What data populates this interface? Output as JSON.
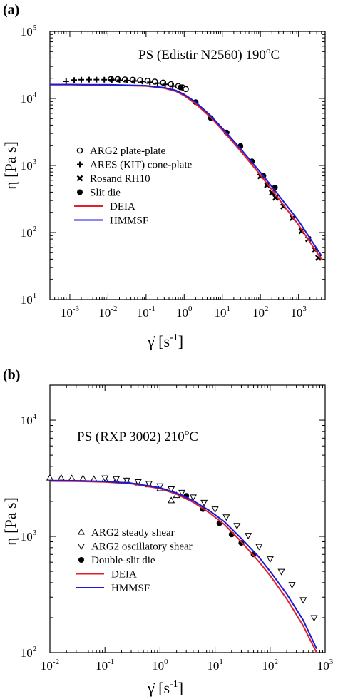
{
  "chart_data": [
    {
      "type": "line",
      "panel_label": "(a)",
      "annotation": {
        "text": "PS (Edistir N2560) 190",
        "sup": "o",
        "suffix": "C"
      },
      "xlabel": {
        "text": "γ̇ [s",
        "sup": "-1",
        "suffix": "]"
      },
      "ylabel": "η [Pa s]",
      "xscale": "log",
      "yscale": "log",
      "xlim": [
        0.0003,
        5000
      ],
      "ylim": [
        10,
        100000
      ],
      "x_ticks": [
        {
          "value": 0.001,
          "base": "10",
          "exp": "-3"
        },
        {
          "value": 0.01,
          "base": "10",
          "exp": "-2"
        },
        {
          "value": 0.1,
          "base": "10",
          "exp": "-1"
        },
        {
          "value": 1,
          "base": "10",
          "exp": "0"
        },
        {
          "value": 10,
          "base": "10",
          "exp": "1"
        },
        {
          "value": 100,
          "base": "10",
          "exp": "2"
        },
        {
          "value": 1000,
          "base": "10",
          "exp": "3"
        }
      ],
      "y_ticks": [
        {
          "value": 10,
          "base": "10",
          "exp": "1"
        },
        {
          "value": 100,
          "base": "10",
          "exp": "2"
        },
        {
          "value": 1000,
          "base": "10",
          "exp": "3"
        },
        {
          "value": 10000,
          "base": "10",
          "exp": "4"
        },
        {
          "value": 100000,
          "base": "10",
          "exp": "5"
        }
      ],
      "legend_position": "left",
      "series": [
        {
          "name": "ARG2 plate-plate",
          "kind": "markers",
          "marker": "open-circle",
          "x": [
            0.012,
            0.018,
            0.028,
            0.045,
            0.07,
            0.11,
            0.17,
            0.28,
            0.45,
            0.7,
            0.9,
            1.1
          ],
          "y": [
            19500,
            19400,
            19200,
            19000,
            18700,
            18300,
            17800,
            17200,
            16300,
            15300,
            14600,
            13800
          ]
        },
        {
          "name": "ARES (KIT) cone-plate",
          "kind": "markers",
          "marker": "plus",
          "x": [
            0.0008,
            0.0013,
            0.002,
            0.0032,
            0.005,
            0.008,
            0.0126,
            0.02,
            0.0316,
            0.05,
            0.08,
            0.126,
            0.2,
            0.316,
            0.5
          ],
          "y": [
            18000,
            18800,
            19000,
            19100,
            19100,
            19000,
            18900,
            18700,
            18500,
            18200,
            17900,
            17400,
            16900,
            16200,
            15300
          ]
        },
        {
          "name": "Rosand RH10",
          "kind": "markers",
          "marker": "x-cross",
          "x": [
            100,
            150,
            200,
            250,
            400,
            700,
            1200,
            1800,
            2700,
            3300
          ],
          "y": [
            690,
            510,
            390,
            330,
            245,
            165,
            105,
            80,
            55,
            42
          ]
        },
        {
          "name": "Slit die",
          "kind": "markers",
          "marker": "filled-circle",
          "x": [
            0.8,
            2,
            5,
            13,
            30,
            60,
            120,
            240
          ],
          "y": [
            14600,
            8800,
            5100,
            3100,
            1950,
            1150,
            700,
            470
          ]
        },
        {
          "name": "DEIA",
          "kind": "line",
          "color": "#e0202a",
          "x": [
            0.0003,
            0.001,
            0.01,
            0.1,
            0.3,
            0.6,
            1,
            2,
            5,
            10,
            30,
            100,
            300,
            1000,
            4000
          ],
          "y": [
            16000,
            16000,
            15800,
            15300,
            14200,
            12800,
            11000,
            8300,
            5200,
            3400,
            1650,
            720,
            320,
            130,
            40
          ]
        },
        {
          "name": "HMMSF",
          "kind": "line",
          "color": "#1a1ad8",
          "x": [
            0.0003,
            0.001,
            0.01,
            0.1,
            0.3,
            0.6,
            1,
            2,
            5,
            10,
            30,
            100,
            300,
            1000,
            4000
          ],
          "y": [
            16100,
            16100,
            16000,
            15500,
            14500,
            13200,
            11500,
            8800,
            5500,
            3600,
            1780,
            790,
            360,
            150,
            45
          ]
        }
      ]
    },
    {
      "type": "line",
      "panel_label": "(b)",
      "annotation": {
        "text": "PS (RXP 3002) 210",
        "sup": "o",
        "suffix": "C"
      },
      "xlabel": {
        "text": "γ̇ [s",
        "sup": "-1",
        "suffix": "]"
      },
      "ylabel": "η [Pa s]",
      "xscale": "log",
      "yscale": "log",
      "xlim": [
        0.01,
        1000
      ],
      "ylim": [
        100,
        20000
      ],
      "x_ticks": [
        {
          "value": 0.01,
          "base": "10",
          "exp": "-2"
        },
        {
          "value": 0.1,
          "base": "10",
          "exp": "-1"
        },
        {
          "value": 1,
          "base": "10",
          "exp": "0"
        },
        {
          "value": 10,
          "base": "10",
          "exp": "1"
        },
        {
          "value": 100,
          "base": "10",
          "exp": "2"
        },
        {
          "value": 1000,
          "base": "10",
          "exp": "3"
        }
      ],
      "y_ticks": [
        {
          "value": 100,
          "base": "10",
          "exp": "2"
        },
        {
          "value": 1000,
          "base": "10",
          "exp": "3"
        },
        {
          "value": 10000,
          "base": "10",
          "exp": "4"
        }
      ],
      "legend_position": "bottom-left",
      "series": [
        {
          "name": "ARG2 steady shear",
          "kind": "markers",
          "marker": "triangle-up",
          "x": [
            0.01,
            0.016,
            0.025,
            0.04,
            0.063,
            0.1,
            0.16,
            0.25,
            0.4,
            0.63,
            1,
            1.6,
            2
          ],
          "y": [
            3180,
            3180,
            3150,
            3150,
            3100,
            3080,
            3030,
            2980,
            2880,
            2780,
            2580,
            2030,
            2250
          ]
        },
        {
          "name": "ARG2 oscillatory shear",
          "kind": "markers",
          "marker": "triangle-down",
          "x": [
            0.1,
            0.16,
            0.25,
            0.4,
            0.63,
            1,
            1.6,
            2.5,
            4,
            6.3,
            10,
            16,
            25,
            40,
            63,
            100,
            160,
            250,
            400,
            630
          ],
          "y": [
            3180,
            3130,
            3040,
            2950,
            2850,
            2720,
            2560,
            2390,
            2180,
            1960,
            1720,
            1470,
            1240,
            1020,
            820,
            640,
            500,
            385,
            285,
            200
          ]
        },
        {
          "name": "Double-slit die",
          "kind": "markers",
          "marker": "filled-circle",
          "x": [
            3,
            6,
            12,
            20,
            30,
            50
          ],
          "y": [
            2230,
            1720,
            1300,
            1040,
            880,
            700
          ]
        },
        {
          "name": "DEIA",
          "kind": "line",
          "color": "#e0202a",
          "x": [
            0.01,
            0.03,
            0.1,
            0.3,
            1,
            2,
            4,
            8,
            15,
            30,
            60,
            100,
            200,
            400,
            700
          ],
          "y": [
            2990,
            2980,
            2940,
            2840,
            2580,
            2310,
            1970,
            1590,
            1260,
            900,
            620,
            460,
            290,
            170,
            100
          ]
        },
        {
          "name": "HMMSF",
          "kind": "line",
          "color": "#1a1ad8",
          "x": [
            0.01,
            0.03,
            0.1,
            0.3,
            1,
            2,
            4,
            8,
            15,
            30,
            60,
            100,
            200,
            400,
            700
          ],
          "y": [
            3020,
            3010,
            2970,
            2870,
            2620,
            2360,
            2030,
            1660,
            1330,
            960,
            680,
            500,
            320,
            190,
            108
          ]
        }
      ]
    }
  ]
}
